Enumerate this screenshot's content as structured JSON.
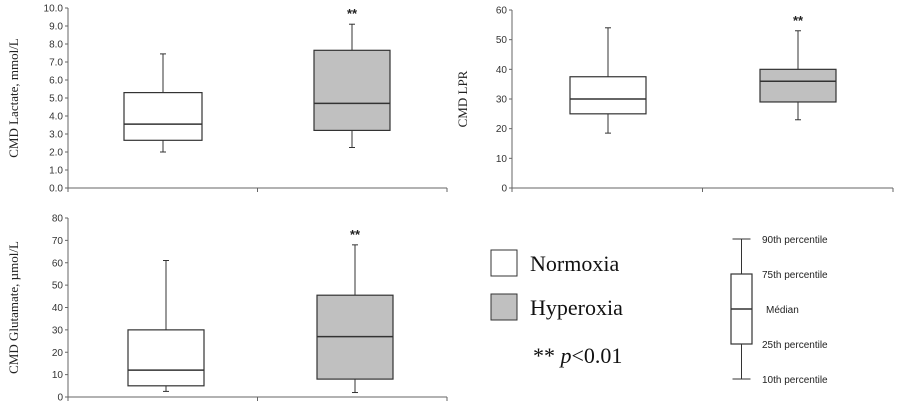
{
  "chart_data": [
    {
      "type": "box",
      "ylabel": "CMD Lactate, mmol/L",
      "ylim": [
        0,
        10
      ],
      "yticks": [
        "0.0",
        "1.0",
        "2.0",
        "3.0",
        "4.0",
        "5.0",
        "6.0",
        "7.0",
        "8.0",
        "9.0",
        "10.0"
      ],
      "series": [
        {
          "name": "Normoxia",
          "p10": 2.0,
          "q1": 2.65,
          "median": 3.55,
          "q3": 5.3,
          "p90": 7.45,
          "annotation": ""
        },
        {
          "name": "Hyperoxia",
          "p10": 2.25,
          "q1": 3.2,
          "median": 4.7,
          "q3": 7.65,
          "p90": 9.1,
          "annotation": "**"
        }
      ]
    },
    {
      "type": "box",
      "ylabel": "CMD LPR",
      "ylim": [
        0,
        60
      ],
      "yticks": [
        "0",
        "10",
        "20",
        "30",
        "40",
        "50",
        "60"
      ],
      "series": [
        {
          "name": "Normoxia",
          "p10": 18.5,
          "q1": 25,
          "median": 30,
          "q3": 37.5,
          "p90": 54,
          "annotation": ""
        },
        {
          "name": "Hyperoxia",
          "p10": 23,
          "q1": 29,
          "median": 36,
          "q3": 40,
          "p90": 53,
          "annotation": "**"
        }
      ]
    },
    {
      "type": "box",
      "ylabel": "CMD Glutamate, µmol/L",
      "ylim": [
        0,
        80
      ],
      "yticks": [
        "0",
        "10",
        "20",
        "30",
        "40",
        "50",
        "60",
        "70",
        "80"
      ],
      "series": [
        {
          "name": "Normoxia",
          "p10": 2.5,
          "q1": 5,
          "median": 12,
          "q3": 30,
          "p90": 61,
          "annotation": ""
        },
        {
          "name": "Hyperoxia",
          "p10": 2,
          "q1": 8,
          "median": 27,
          "q3": 45.5,
          "p90": 68,
          "annotation": "**"
        }
      ]
    }
  ],
  "legend": {
    "items": [
      {
        "label": "Normoxia",
        "color": "#ffffff"
      },
      {
        "label": "Hyperoxia",
        "color": "#c0c0c0"
      }
    ],
    "significance_prefix": "** ",
    "significance_p": "p",
    "significance_suffix": "<0.01"
  },
  "key": {
    "p90": "90th percentile",
    "q3": "75th percentile",
    "median": "Médian",
    "q1": "25th percentile",
    "p10": "10th percentile"
  },
  "colors": {
    "normoxia": "#ffffff",
    "hyperoxia": "#c0c0c0",
    "stroke": "#333333"
  }
}
